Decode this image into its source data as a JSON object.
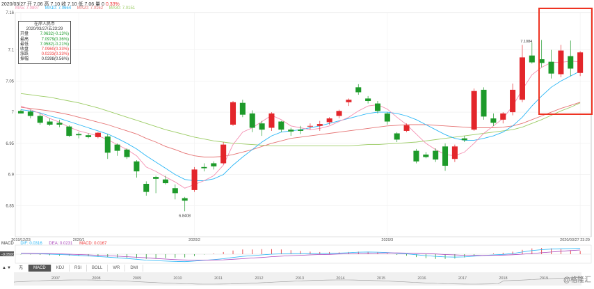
{
  "header": {
    "date": "2020/03/27",
    "open_label": "开",
    "open": "7.06",
    "high_label": "高",
    "high": "7.10",
    "close_label": "收",
    "close": "7.10",
    "low_label": "低",
    "low": "7.06",
    "vol_label": "量",
    "vol": "0",
    "change": "0.33%"
  },
  "ma_legend": [
    {
      "label": "MA5: 7.0807",
      "color": "#f48fb1"
    },
    {
      "label": "MA10: 7.0664",
      "color": "#29b6f6"
    },
    {
      "label": "MA20: 7.0162",
      "color": "#e57373"
    },
    {
      "label": "MA30: 7.0151",
      "color": "#9ccc65"
    }
  ],
  "tooltip": {
    "title": "在岸人民币",
    "datetime": "2020/03/27/五23:29",
    "rows": [
      {
        "k": "开盘",
        "v": "7.0632(-0.13%)",
        "tone": "green"
      },
      {
        "k": "最高",
        "v": "7.0979(0.36%)",
        "tone": "green"
      },
      {
        "k": "最低",
        "v": "7.0582(-0.21%)",
        "tone": "green"
      },
      {
        "k": "收盘",
        "v": "7.0960(0.33%)",
        "tone": "red"
      },
      {
        "k": "涨跌",
        "v": "0.0233(0.33%)",
        "tone": "red"
      },
      {
        "k": "振幅",
        "v": "0.0398(0.56%)",
        "tone": "k"
      }
    ]
  },
  "macd": {
    "title": "MACD",
    "dif": "DIF: 0.0316",
    "dea": "DEA: 0.0231",
    "macd": "MACD: 0.0167",
    "side_label": "-0.0500"
  },
  "tabs": [
    "无",
    "MACD",
    "KDJ",
    "RSI",
    "BOLL",
    "WR",
    "DMI"
  ],
  "active_tab": "MACD",
  "nav": {
    "prev": "▲",
    "next": "▼"
  },
  "overview_years": [
    "2007",
    "2008",
    "2009",
    "2010",
    "2011",
    "2012",
    "2013",
    "2014",
    "2015",
    "2016",
    "2017",
    "2018",
    "2019"
  ],
  "watermark": "@格隆汇",
  "colors": {
    "up": "#e3262b",
    "down": "#1d9a2a",
    "ma5": "#f48fb1",
    "ma10": "#29b6f6",
    "ma20": "#e57373",
    "ma30": "#9ccc65"
  },
  "chart_data": {
    "type": "candlestick",
    "ylim": [
      6.8,
      7.16
    ],
    "y_ticks": [
      "7.16",
      "7.1",
      "7.05",
      "7",
      "6.95",
      "6.9",
      "6.85"
    ],
    "x_ticks": [
      "2019/12/23",
      "2020/1",
      "2020/2",
      "2020/3",
      "2020/03/27 23:29"
    ],
    "annotations": [
      {
        "text": "7.1084",
        "value": 7.1084
      },
      {
        "text": "6.8408",
        "value": 6.8408
      }
    ],
    "candles": [
      {
        "o": 7.002,
        "h": 7.004,
        "l": 6.998,
        "c": 6.998
      },
      {
        "o": 7.001,
        "h": 7.004,
        "l": 6.99,
        "c": 6.994
      },
      {
        "o": 6.994,
        "h": 6.998,
        "l": 6.98,
        "c": 6.983
      },
      {
        "o": 6.985,
        "h": 6.99,
        "l": 6.978,
        "c": 6.98
      },
      {
        "o": 6.983,
        "h": 6.988,
        "l": 6.976,
        "c": 6.98
      },
      {
        "o": 6.977,
        "h": 6.979,
        "l": 6.96,
        "c": 6.962
      },
      {
        "o": 6.965,
        "h": 6.968,
        "l": 6.958,
        "c": 6.963
      },
      {
        "o": 6.963,
        "h": 6.966,
        "l": 6.958,
        "c": 6.96
      },
      {
        "o": 6.96,
        "h": 6.968,
        "l": 6.958,
        "c": 6.967
      },
      {
        "o": 6.961,
        "h": 6.965,
        "l": 6.925,
        "c": 6.935
      },
      {
        "o": 6.948,
        "h": 6.95,
        "l": 6.93,
        "c": 6.938
      },
      {
        "o": 6.94,
        "h": 6.942,
        "l": 6.925,
        "c": 6.928
      },
      {
        "o": 6.921,
        "h": 6.923,
        "l": 6.895,
        "c": 6.905
      },
      {
        "o": 6.885,
        "h": 6.889,
        "l": 6.866,
        "c": 6.872
      },
      {
        "o": 6.896,
        "h": 6.898,
        "l": 6.87,
        "c": 6.893
      },
      {
        "o": 6.892,
        "h": 6.898,
        "l": 6.884,
        "c": 6.886
      },
      {
        "o": 6.878,
        "h": 6.884,
        "l": 6.86,
        "c": 6.87
      },
      {
        "o": 6.862,
        "h": 6.864,
        "l": 6.841,
        "c": 6.858
      },
      {
        "o": 6.875,
        "h": 6.912,
        "l": 6.872,
        "c": 6.908
      },
      {
        "o": 6.912,
        "h": 6.918,
        "l": 6.905,
        "c": 6.91
      },
      {
        "o": 6.918,
        "h": 6.921,
        "l": 6.908,
        "c": 6.913
      },
      {
        "o": 6.918,
        "h": 6.952,
        "l": 6.916,
        "c": 6.948
      },
      {
        "o": 6.98,
        "h": 7.018,
        "l": 6.978,
        "c": 7.016
      },
      {
        "o": 7.015,
        "h": 7.02,
        "l": 6.992,
        "c": 6.996
      },
      {
        "o": 6.998,
        "h": 7.003,
        "l": 6.968,
        "c": 6.975
      },
      {
        "o": 6.982,
        "h": 6.986,
        "l": 6.962,
        "c": 6.972
      },
      {
        "o": 6.975,
        "h": 7.0,
        "l": 6.97,
        "c": 6.998
      },
      {
        "o": 6.985,
        "h": 6.986,
        "l": 6.968,
        "c": 6.972
      },
      {
        "o": 6.972,
        "h": 6.975,
        "l": 6.962,
        "c": 6.969
      },
      {
        "o": 6.972,
        "h": 6.978,
        "l": 6.965,
        "c": 6.97
      },
      {
        "o": 6.978,
        "h": 6.982,
        "l": 6.972,
        "c": 6.978
      },
      {
        "o": 6.978,
        "h": 6.986,
        "l": 6.97,
        "c": 6.981
      },
      {
        "o": 6.984,
        "h": 6.992,
        "l": 6.98,
        "c": 6.99
      },
      {
        "o": 6.994,
        "h": 7.004,
        "l": 6.99,
        "c": 7.002
      },
      {
        "o": 7.016,
        "h": 7.022,
        "l": 7.01,
        "c": 7.02
      },
      {
        "o": 7.04,
        "h": 7.045,
        "l": 7.028,
        "c": 7.032
      },
      {
        "o": 7.022,
        "h": 7.026,
        "l": 7.014,
        "c": 7.018
      },
      {
        "o": 7.014,
        "h": 7.018,
        "l": 6.998,
        "c": 7.002
      },
      {
        "o": 6.998,
        "h": 7.0,
        "l": 6.98,
        "c": 6.985
      },
      {
        "o": 6.966,
        "h": 6.968,
        "l": 6.952,
        "c": 6.956
      },
      {
        "o": 6.97,
        "h": 6.982,
        "l": 6.968,
        "c": 6.979
      },
      {
        "o": 6.938,
        "h": 6.941,
        "l": 6.918,
        "c": 6.921
      },
      {
        "o": 6.932,
        "h": 6.936,
        "l": 6.926,
        "c": 6.928
      },
      {
        "o": 6.938,
        "h": 6.942,
        "l": 6.92,
        "c": 6.924
      },
      {
        "o": 6.945,
        "h": 6.95,
        "l": 6.906,
        "c": 6.914
      },
      {
        "o": 6.925,
        "h": 6.948,
        "l": 6.92,
        "c": 6.945
      },
      {
        "o": 6.958,
        "h": 6.962,
        "l": 6.952,
        "c": 6.955
      },
      {
        "o": 6.972,
        "h": 7.038,
        "l": 6.97,
        "c": 7.034
      },
      {
        "o": 7.036,
        "h": 7.04,
        "l": 6.988,
        "c": 6.993
      },
      {
        "o": 6.99,
        "h": 6.998,
        "l": 6.978,
        "c": 6.983
      },
      {
        "o": 6.988,
        "h": 7.0,
        "l": 6.982,
        "c": 6.998
      },
      {
        "o": 7.0,
        "h": 7.046,
        "l": 6.995,
        "c": 7.036
      },
      {
        "o": 7.02,
        "h": 7.108,
        "l": 7.016,
        "c": 7.088
      },
      {
        "o": 7.091,
        "h": 7.112,
        "l": 7.078,
        "c": 7.08
      },
      {
        "o": 7.085,
        "h": 7.116,
        "l": 7.072,
        "c": 7.079
      },
      {
        "o": 7.081,
        "h": 7.1,
        "l": 7.054,
        "c": 7.062
      },
      {
        "o": 7.061,
        "h": 7.108,
        "l": 7.056,
        "c": 7.099
      },
      {
        "o": 7.09,
        "h": 7.115,
        "l": 7.058,
        "c": 7.07
      },
      {
        "o": 7.063,
        "h": 7.098,
        "l": 7.058,
        "c": 7.096
      }
    ],
    "ma5": [
      7.01,
      7.004,
      6.998,
      6.99,
      6.984,
      6.976,
      6.97,
      6.966,
      6.962,
      6.956,
      6.948,
      6.94,
      6.93,
      6.912,
      6.905,
      6.896,
      6.888,
      6.878,
      6.884,
      6.89,
      6.898,
      6.915,
      6.948,
      6.968,
      6.975,
      6.985,
      6.995,
      6.988,
      6.978,
      6.975,
      6.972,
      6.974,
      6.978,
      6.985,
      6.992,
      7.002,
      7.01,
      7.012,
      7.005,
      6.992,
      6.98,
      6.965,
      6.95,
      6.94,
      6.932,
      6.93,
      6.936,
      6.95,
      6.966,
      6.978,
      6.99,
      7.01,
      7.036,
      7.06,
      7.072,
      7.08,
      7.08,
      7.082,
      7.081
    ],
    "ma10": [
      7.004,
      7.002,
      6.999,
      6.994,
      6.99,
      6.985,
      6.98,
      6.975,
      6.97,
      6.965,
      6.958,
      6.95,
      6.941,
      6.93,
      6.92,
      6.91,
      6.9,
      6.892,
      6.89,
      6.89,
      6.893,
      6.9,
      6.915,
      6.928,
      6.94,
      6.952,
      6.962,
      6.968,
      6.97,
      6.972,
      6.975,
      6.978,
      6.982,
      6.986,
      6.99,
      6.994,
      6.998,
      7.0,
      7.0,
      6.998,
      6.994,
      6.988,
      6.98,
      6.972,
      6.964,
      6.958,
      6.955,
      6.955,
      6.958,
      6.962,
      6.968,
      6.978,
      6.992,
      7.01,
      7.026,
      7.04,
      7.05,
      7.058,
      7.066
    ],
    "ma20": [
      7.008,
      7.006,
      7.004,
      7.002,
      6.999,
      6.996,
      6.992,
      6.988,
      6.984,
      6.98,
      6.975,
      6.97,
      6.965,
      6.958,
      6.952,
      6.945,
      6.94,
      6.934,
      6.93,
      6.928,
      6.928,
      6.929,
      6.932,
      6.936,
      6.94,
      6.945,
      6.95,
      6.954,
      6.958,
      6.96,
      6.962,
      6.964,
      6.966,
      6.968,
      6.97,
      6.972,
      6.974,
      6.976,
      6.978,
      6.979,
      6.98,
      6.98,
      6.98,
      6.979,
      6.978,
      6.977,
      6.976,
      6.975,
      6.975,
      6.975,
      6.976,
      6.978,
      6.982,
      6.988,
      6.994,
      7.0,
      7.006,
      7.011,
      7.016
    ],
    "ma30": [
      7.03,
      7.028,
      7.026,
      7.024,
      7.021,
      7.018,
      7.015,
      7.011,
      7.007,
      7.002,
      6.997,
      6.992,
      6.987,
      6.982,
      6.977,
      6.972,
      6.968,
      6.964,
      6.96,
      6.957,
      6.954,
      6.952,
      6.95,
      6.949,
      6.948,
      6.947,
      6.946,
      6.946,
      6.946,
      6.946,
      6.946,
      6.946,
      6.946,
      6.946,
      6.946,
      6.947,
      6.948,
      6.948,
      6.949,
      6.95,
      6.951,
      6.952,
      6.954,
      6.956,
      6.958,
      6.96,
      6.962,
      6.964,
      6.966,
      6.968,
      6.97,
      6.972,
      6.976,
      6.982,
      6.988,
      6.995,
      7.002,
      7.008,
      7.015
    ],
    "macd_dif": [
      0.005,
      0.004,
      0.002,
      0.0,
      -0.002,
      -0.004,
      -0.007,
      -0.01,
      -0.013,
      -0.016,
      -0.02,
      -0.024,
      -0.028,
      -0.033,
      -0.036,
      -0.038,
      -0.04,
      -0.041,
      -0.038,
      -0.034,
      -0.03,
      -0.025,
      -0.018,
      -0.012,
      -0.008,
      -0.004,
      0.0,
      0.002,
      0.003,
      0.003,
      0.003,
      0.004,
      0.005,
      0.006,
      0.008,
      0.011,
      0.012,
      0.011,
      0.009,
      0.005,
      0.002,
      -0.003,
      -0.008,
      -0.012,
      -0.015,
      -0.016,
      -0.015,
      -0.011,
      -0.007,
      -0.004,
      -0.001,
      0.004,
      0.012,
      0.02,
      0.025,
      0.028,
      0.03,
      0.031,
      0.032
    ],
    "macd_dea": [
      0.006,
      0.005,
      0.004,
      0.003,
      0.002,
      0.0,
      -0.002,
      -0.004,
      -0.006,
      -0.008,
      -0.011,
      -0.014,
      -0.017,
      -0.02,
      -0.024,
      -0.027,
      -0.03,
      -0.032,
      -0.033,
      -0.033,
      -0.032,
      -0.031,
      -0.028,
      -0.025,
      -0.021,
      -0.018,
      -0.014,
      -0.011,
      -0.008,
      -0.006,
      -0.004,
      -0.002,
      -0.001,
      0.001,
      0.002,
      0.004,
      0.005,
      0.006,
      0.007,
      0.007,
      0.006,
      0.005,
      0.003,
      0.001,
      -0.002,
      -0.004,
      -0.006,
      -0.007,
      -0.007,
      -0.006,
      -0.005,
      -0.003,
      0.0,
      0.004,
      0.008,
      0.012,
      0.016,
      0.02,
      0.023
    ]
  }
}
